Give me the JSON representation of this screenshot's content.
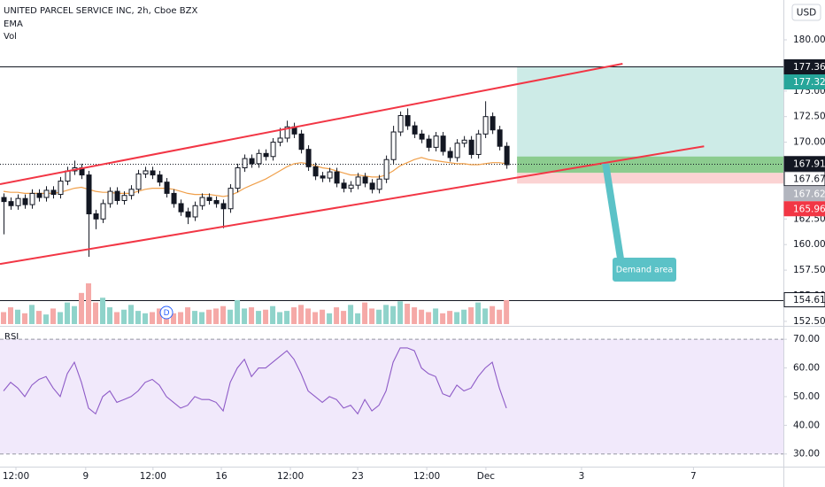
{
  "chart_data": [
    {
      "type": "candlestick",
      "title": "UNITED PARCEL SERVICE INC, 2h, Cboe BZX",
      "currency": "USD",
      "xlim": [
        -0.5,
        110.1
      ],
      "xticks": [
        {
          "value": 1.75,
          "label": "12:00"
        },
        {
          "value": 11.6,
          "label": "9"
        },
        {
          "value": 21.1,
          "label": "12:00"
        },
        {
          "value": 30.75,
          "label": "16"
        },
        {
          "value": 40.5,
          "label": "12:00"
        },
        {
          "value": 50,
          "label": "23"
        },
        {
          "value": 59.75,
          "label": "12:00"
        },
        {
          "value": 68.1,
          "label": "Dec"
        },
        {
          "value": 81.6,
          "label": "3"
        },
        {
          "value": 97.4,
          "label": "7"
        }
      ],
      "ylim": [
        152.06,
        183.89
      ],
      "yticks": [
        {
          "value": 152.5,
          "label": "152.50"
        },
        {
          "value": 155,
          "label": "155.00"
        },
        {
          "value": 157.5,
          "label": "157.50"
        },
        {
          "value": 160,
          "label": "160.00"
        },
        {
          "value": 162.5,
          "label": "162.50"
        },
        {
          "value": 165,
          "label": "165.00"
        },
        {
          "value": 167.5,
          "label": "167.50"
        },
        {
          "value": 170,
          "label": "170.00"
        },
        {
          "value": 172.5,
          "label": "172.50"
        },
        {
          "value": 175,
          "label": "175.00"
        },
        {
          "value": 177.5,
          "label": "177.50"
        },
        {
          "value": 180,
          "label": "180.00"
        }
      ],
      "grid": false,
      "up_color": "#ffffff",
      "down_color": "#131722",
      "wick_color": "#131722",
      "open": [
        164.6,
        164.2,
        163.8,
        164.5,
        163.9,
        165.0,
        164.6,
        165.3,
        164.9,
        166.2,
        167.2,
        167.5,
        166.8,
        163.0,
        162.5,
        164.0,
        165.2,
        164.3,
        164.8,
        165.4,
        166.9,
        167.2,
        166.8,
        166.1,
        165.0,
        164.0,
        163.2,
        162.7,
        163.8,
        164.6,
        164.3,
        164.0,
        163.5,
        165.5,
        167.5,
        168.4,
        167.9,
        168.9,
        168.6,
        170.0,
        170.4,
        171.5,
        170.8,
        169.3,
        167.6,
        166.7,
        166.5,
        167.1,
        166.0,
        165.5,
        165.8,
        166.6,
        166.0,
        165.4,
        166.4,
        168.3,
        171.0,
        172.6,
        171.6,
        170.8,
        170.3,
        169.5,
        170.6,
        169.1,
        168.5,
        169.9,
        170.2,
        168.8,
        170.8,
        172.5,
        171.2,
        169.6
      ],
      "high": [
        165.0,
        164.6,
        164.9,
        164.9,
        165.4,
        165.4,
        165.7,
        165.7,
        166.6,
        167.6,
        168.2,
        167.9,
        167.2,
        163.4,
        164.4,
        165.6,
        165.6,
        165.2,
        165.8,
        167.3,
        167.6,
        167.6,
        167.2,
        166.5,
        165.4,
        164.4,
        163.6,
        164.2,
        165.0,
        165.0,
        164.7,
        164.4,
        165.9,
        167.9,
        168.8,
        168.8,
        169.3,
        169.3,
        170.4,
        171.4,
        172.1,
        171.9,
        171.2,
        169.7,
        168.0,
        167.1,
        167.5,
        167.5,
        166.4,
        166.2,
        167.0,
        167.0,
        166.4,
        166.8,
        168.7,
        171.6,
        173.0,
        173.3,
        172.0,
        171.2,
        170.7,
        171.0,
        171.0,
        169.5,
        170.3,
        170.6,
        170.6,
        171.2,
        174.0,
        172.9,
        171.6,
        170.0
      ],
      "low": [
        161.0,
        163.4,
        163.4,
        163.5,
        163.5,
        164.2,
        164.2,
        164.5,
        164.5,
        165.8,
        166.8,
        166.4,
        158.8,
        161.5,
        162.1,
        163.6,
        163.9,
        163.9,
        164.4,
        165.0,
        166.5,
        166.4,
        165.7,
        164.6,
        163.6,
        162.8,
        162.0,
        162.3,
        163.4,
        163.9,
        163.6,
        161.6,
        163.1,
        165.1,
        167.1,
        167.5,
        167.5,
        168.2,
        168.2,
        169.6,
        170.0,
        170.4,
        168.9,
        167.2,
        166.3,
        166.1,
        166.1,
        165.6,
        165.1,
        165.1,
        165.4,
        165.6,
        165.0,
        165.0,
        166.0,
        167.9,
        170.6,
        171.2,
        170.4,
        169.9,
        169.1,
        169.1,
        168.7,
        168.1,
        168.1,
        169.5,
        168.4,
        168.4,
        170.4,
        170.8,
        169.2,
        167.4
      ],
      "close": [
        164.2,
        163.8,
        164.5,
        163.9,
        165.0,
        164.6,
        165.3,
        164.9,
        166.2,
        167.2,
        167.5,
        166.8,
        163.0,
        162.5,
        164.0,
        165.2,
        164.3,
        164.8,
        165.4,
        166.9,
        167.2,
        166.8,
        166.1,
        165.0,
        164.0,
        163.2,
        162.7,
        163.8,
        164.6,
        164.3,
        164.0,
        163.5,
        165.5,
        167.5,
        168.4,
        167.9,
        168.9,
        168.6,
        170.0,
        170.4,
        171.5,
        170.8,
        169.3,
        167.6,
        166.7,
        166.5,
        167.1,
        166.0,
        165.5,
        165.8,
        166.6,
        166.0,
        165.4,
        166.4,
        168.3,
        171.0,
        172.6,
        171.6,
        170.8,
        170.3,
        169.5,
        170.6,
        169.1,
        168.5,
        169.9,
        170.2,
        168.8,
        170.8,
        172.5,
        171.2,
        169.6,
        167.8
      ],
      "series": [
        {
          "name": "EMA",
          "color": "#f0a04b",
          "values": [
            165.2,
            165.1,
            165.1,
            165.0,
            165.0,
            165.0,
            165.0,
            165.0,
            165.1,
            165.3,
            165.5,
            165.6,
            165.4,
            165.2,
            165.1,
            165.1,
            165.0,
            165.0,
            165.0,
            165.2,
            165.4,
            165.5,
            165.5,
            165.5,
            165.4,
            165.2,
            165.0,
            164.9,
            164.9,
            164.9,
            164.8,
            164.7,
            164.8,
            165.1,
            165.5,
            165.8,
            166.1,
            166.4,
            166.8,
            167.2,
            167.6,
            167.9,
            168.0,
            167.9,
            167.7,
            167.5,
            167.4,
            167.2,
            167.0,
            166.8,
            166.8,
            166.7,
            166.6,
            166.6,
            166.8,
            167.2,
            167.7,
            168.0,
            168.3,
            168.5,
            168.3,
            168.2,
            168.1,
            168.0,
            167.9,
            167.9,
            167.8,
            167.8,
            167.9,
            168.0,
            168.0,
            167.9
          ]
        }
      ],
      "volume": {
        "name": "Vol",
        "up_color": "#8fd3ca",
        "down_color": "#f5a9a7",
        "values": [
          1.0,
          1.4,
          1.2,
          0.9,
          1.6,
          1.1,
          0.8,
          1.3,
          1.0,
          1.8,
          1.5,
          2.6,
          3.4,
          1.8,
          2.2,
          1.4,
          1.0,
          1.2,
          1.6,
          1.1,
          0.9,
          1.0,
          1.3,
          1.2,
          0.9,
          1.0,
          1.4,
          1.1,
          1.0,
          1.2,
          1.3,
          1.5,
          1.2,
          2.0,
          1.3,
          1.4,
          1.1,
          1.2,
          1.5,
          1.0,
          1.1,
          1.4,
          1.6,
          1.3,
          1.0,
          1.2,
          0.9,
          1.4,
          1.1,
          1.6,
          0.9,
          1.8,
          1.3,
          1.2,
          1.6,
          1.5,
          1.9,
          1.7,
          1.4,
          1.2,
          1.0,
          1.3,
          0.9,
          1.1,
          1.0,
          1.2,
          1.4,
          1.8,
          1.3,
          1.5,
          1.2,
          2.0
        ]
      },
      "events": [
        {
          "label": "D",
          "x": 23
        }
      ],
      "trend_lines": [
        {
          "x": [
            -0.5,
            87.4
          ],
          "y": [
            165.9,
            177.66
          ],
          "color": "#f23645"
        },
        {
          "x": [
            -0.5,
            98.9
          ],
          "y": [
            158.1,
            169.6
          ],
          "color": "#f23645"
        }
      ],
      "horizontal_lines": [
        {
          "value": 177.36,
          "style": "solid"
        },
        {
          "value": 154.61,
          "style": "solid"
        },
        {
          "value": 167.91,
          "style": "dotted"
        }
      ],
      "zones": [
        {
          "x_start": 72.5,
          "from": 167.91,
          "to": 177.36,
          "color": "#cdebe7"
        },
        {
          "x_start": 72.5,
          "from": 167.0,
          "to": 168.6,
          "color": "#8ccc8f"
        },
        {
          "x_start": 72.5,
          "from": 165.96,
          "to": 167.0,
          "color": "#fbd3d3"
        }
      ],
      "annotation": {
        "text": "Demand area",
        "x": 84.5,
        "y": 167.9,
        "color": "#5bc2c7"
      },
      "price_labels": [
        {
          "value": 177.36,
          "color": "#131722",
          "text_color": "#ffffff"
        },
        {
          "value": 177.32,
          "color": "#26a69a",
          "text_color": "#ffffff"
        },
        {
          "value": 167.91,
          "color": "#131722",
          "text_color": "#ffffff"
        },
        {
          "value": 167.67,
          "color": "#ffffff",
          "text_color": "#131722"
        },
        {
          "value": 167.62,
          "color": "#b2b5be",
          "text_color": "#ffffff"
        },
        {
          "value": 165.96,
          "color": "#f23645",
          "text_color": "#ffffff"
        },
        {
          "value": 154.61,
          "color": "#ffffff",
          "text_color": "#131722"
        }
      ]
    },
    {
      "type": "line",
      "ylim": [
        25.6,
        74.06
      ],
      "yticks": [
        {
          "value": 30,
          "label": "30.00"
        },
        {
          "value": 40,
          "label": "40.00"
        },
        {
          "value": 50,
          "label": "50.00"
        },
        {
          "value": 60,
          "label": "60.00"
        },
        {
          "value": 70,
          "label": "70.00"
        }
      ],
      "band": [
        30,
        70
      ],
      "band_color": "#f1e9fb",
      "series": [
        {
          "name": "RSI",
          "color": "#8e5bc7",
          "values": [
            52,
            55,
            53,
            50,
            54,
            56,
            57,
            53,
            50,
            58,
            62,
            55,
            46,
            44,
            50,
            52,
            48,
            49,
            50,
            52,
            55,
            56,
            54,
            50,
            48,
            46,
            47,
            50,
            49,
            49,
            48,
            45,
            55,
            60,
            63,
            57,
            60,
            60,
            62,
            64,
            66,
            63,
            58,
            52,
            50,
            48,
            50,
            49,
            46,
            47,
            44,
            49,
            45,
            47,
            52,
            62,
            67,
            67,
            66,
            60,
            58,
            57,
            51,
            50,
            54,
            52,
            53,
            57,
            60,
            62,
            53,
            46
          ]
        }
      ]
    }
  ]
}
